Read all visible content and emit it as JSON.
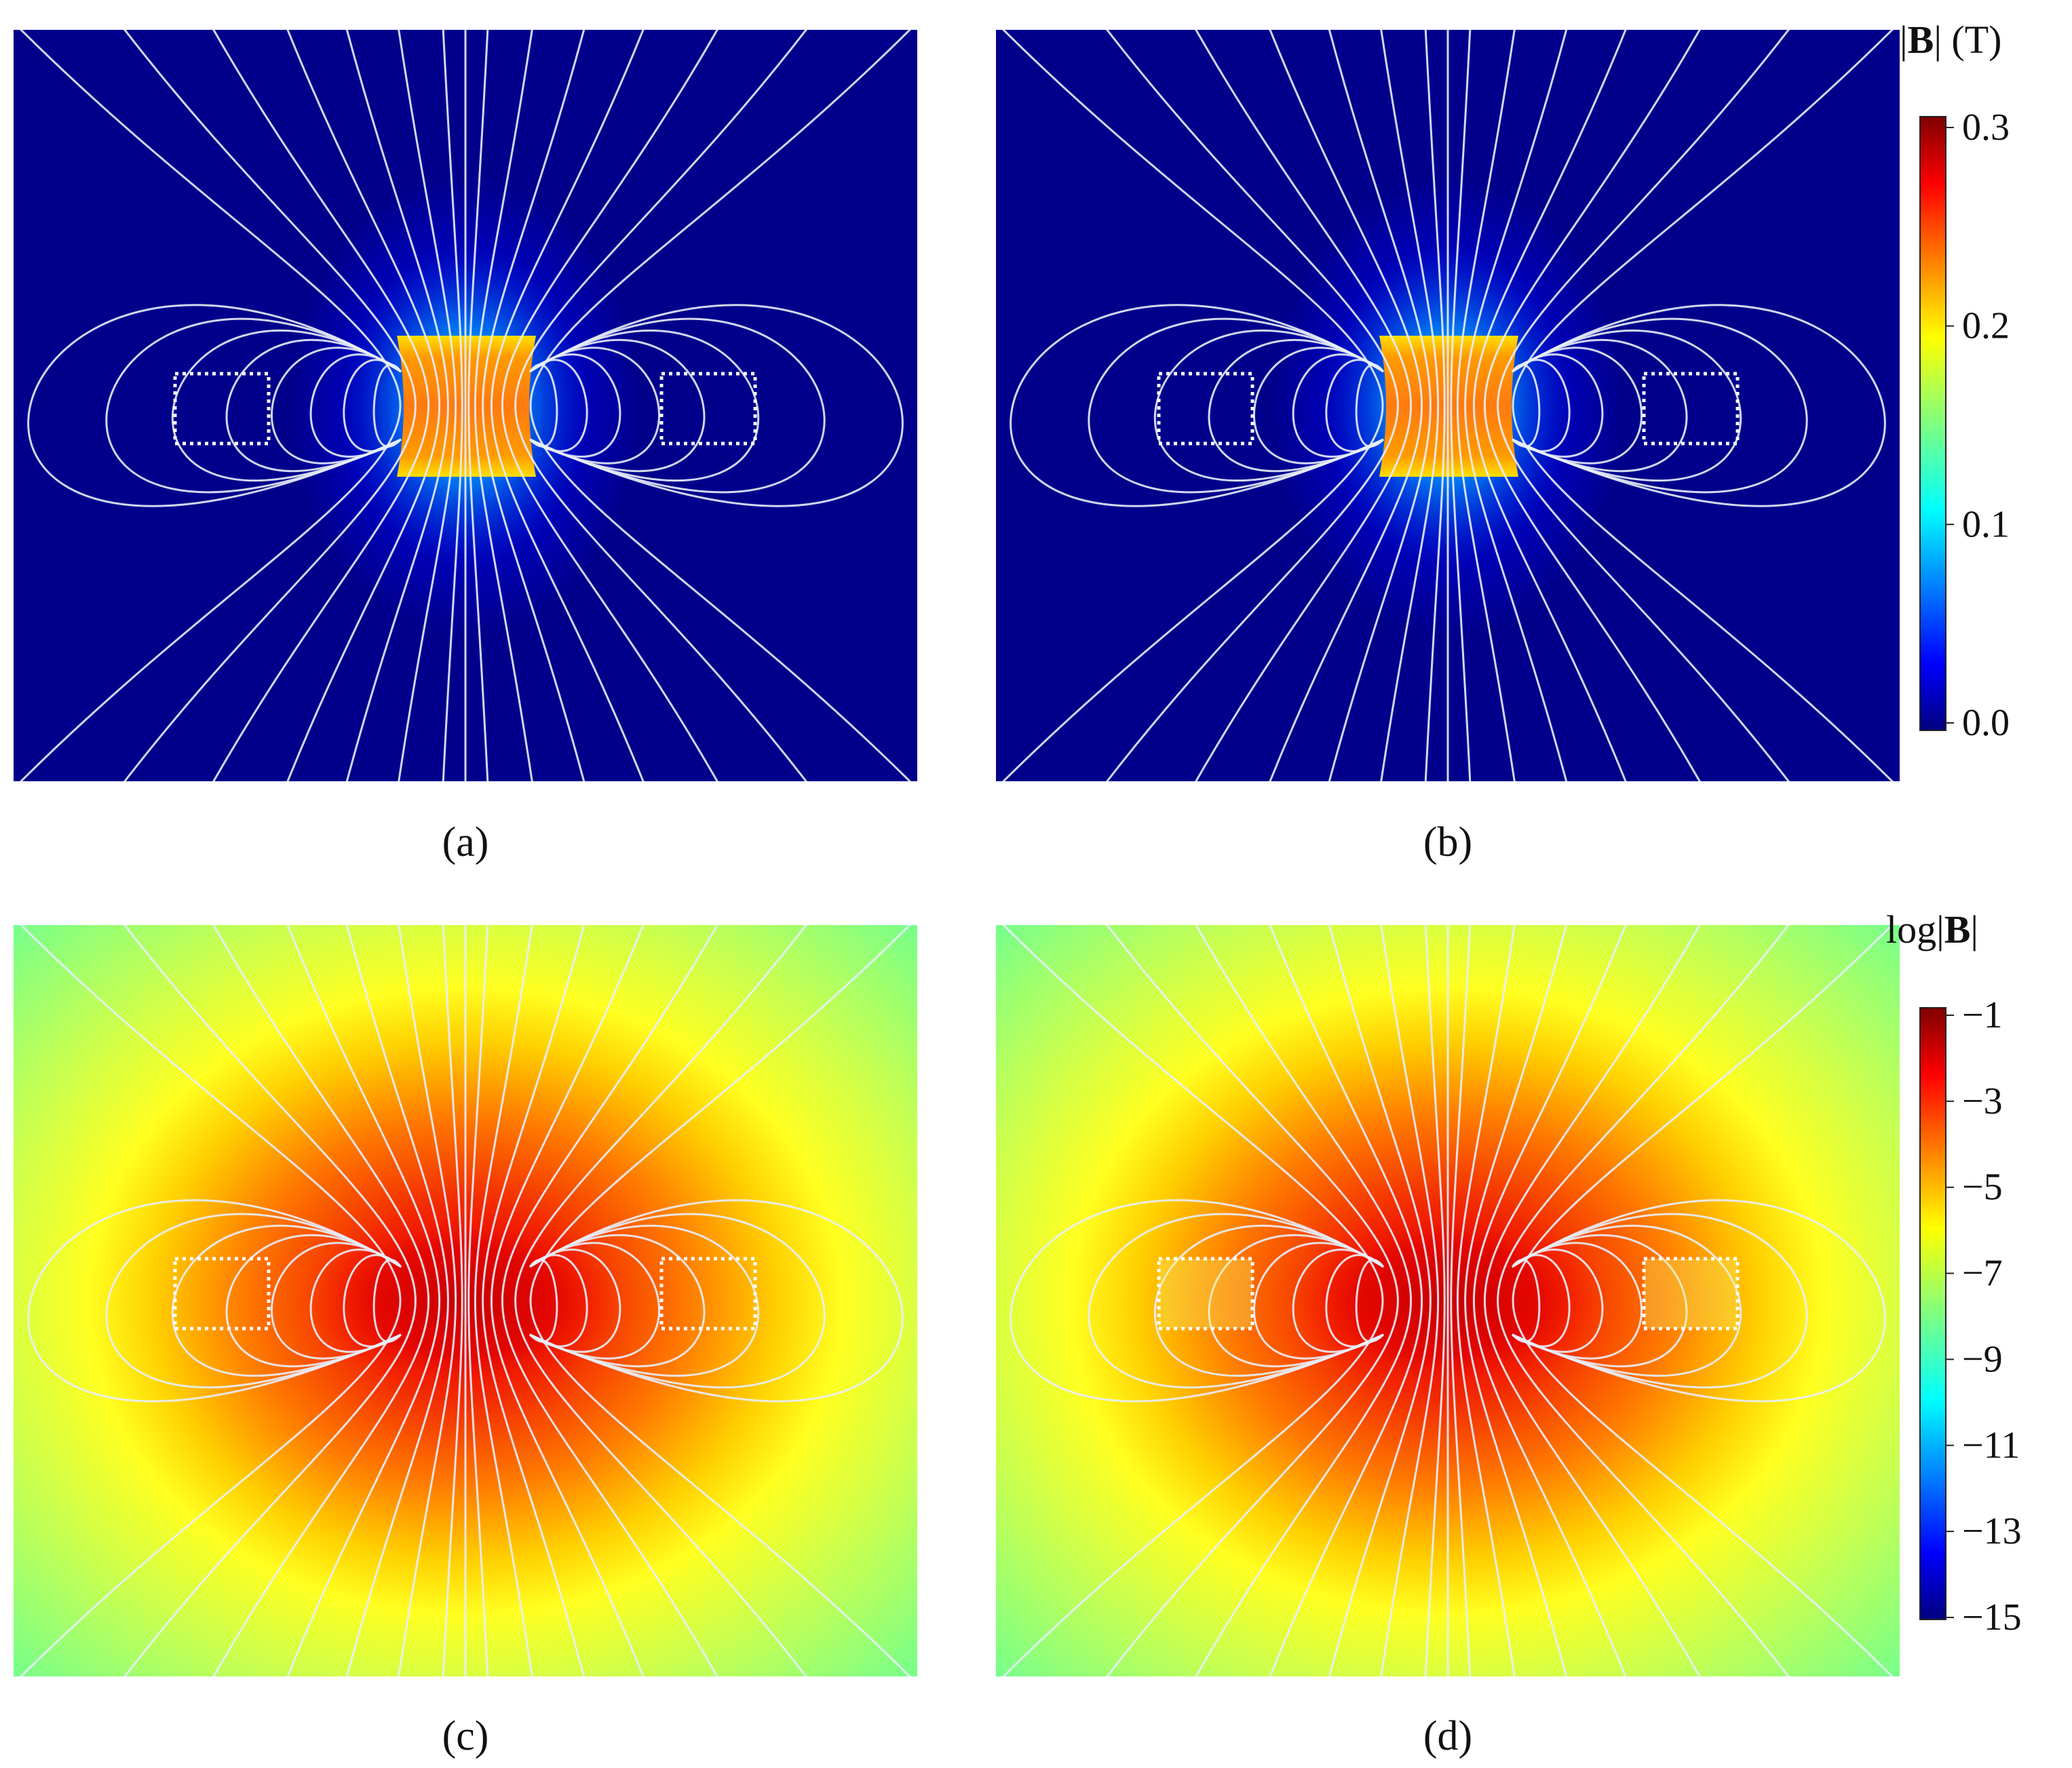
{
  "chart_data": [
    {
      "type": "heatmap",
      "panel": "(a)",
      "quantity": "|B|",
      "colorbar_ref": "linear",
      "field_lines": true,
      "regions_marked": 2,
      "description": ""
    },
    {
      "type": "heatmap",
      "panel": "(b)",
      "quantity": "|B|",
      "colorbar_ref": "linear",
      "field_lines": true,
      "regions_marked": 2
    },
    {
      "type": "heatmap",
      "panel": "(c)",
      "quantity": "log|B|",
      "colorbar_ref": "log",
      "field_lines": true,
      "regions_marked": 2
    },
    {
      "type": "heatmap",
      "panel": "(d)",
      "quantity": "log|B|",
      "colorbar_ref": "log",
      "field_lines": true,
      "regions_marked": 2
    }
  ],
  "colorbars": {
    "linear": {
      "title_left": "|",
      "title_bold": "B",
      "title_right": "| (T)",
      "ticks": [
        "0.3",
        "0.2",
        "0.1",
        "0.0"
      ],
      "range": [
        0.0,
        0.3
      ]
    },
    "log": {
      "title_left": "log|",
      "title_bold": "B",
      "title_right": "|",
      "ticks": [
        "−1",
        "−3",
        "−5",
        "−7",
        "−9",
        "−11",
        "−13",
        "−15"
      ],
      "range": [
        -15,
        -1
      ]
    }
  },
  "panel_labels": [
    "(a)",
    "(b)",
    "(c)",
    "(d)"
  ],
  "colors": {
    "jet": [
      "#00007f",
      "#0000ff",
      "#007fff",
      "#00ffff",
      "#7fff7f",
      "#ffff00",
      "#ff7f00",
      "#ff0000",
      "#7f0000"
    ],
    "field_line": "#e8eef8",
    "marker": "#ffffff",
    "background_linear": "#00008b"
  }
}
